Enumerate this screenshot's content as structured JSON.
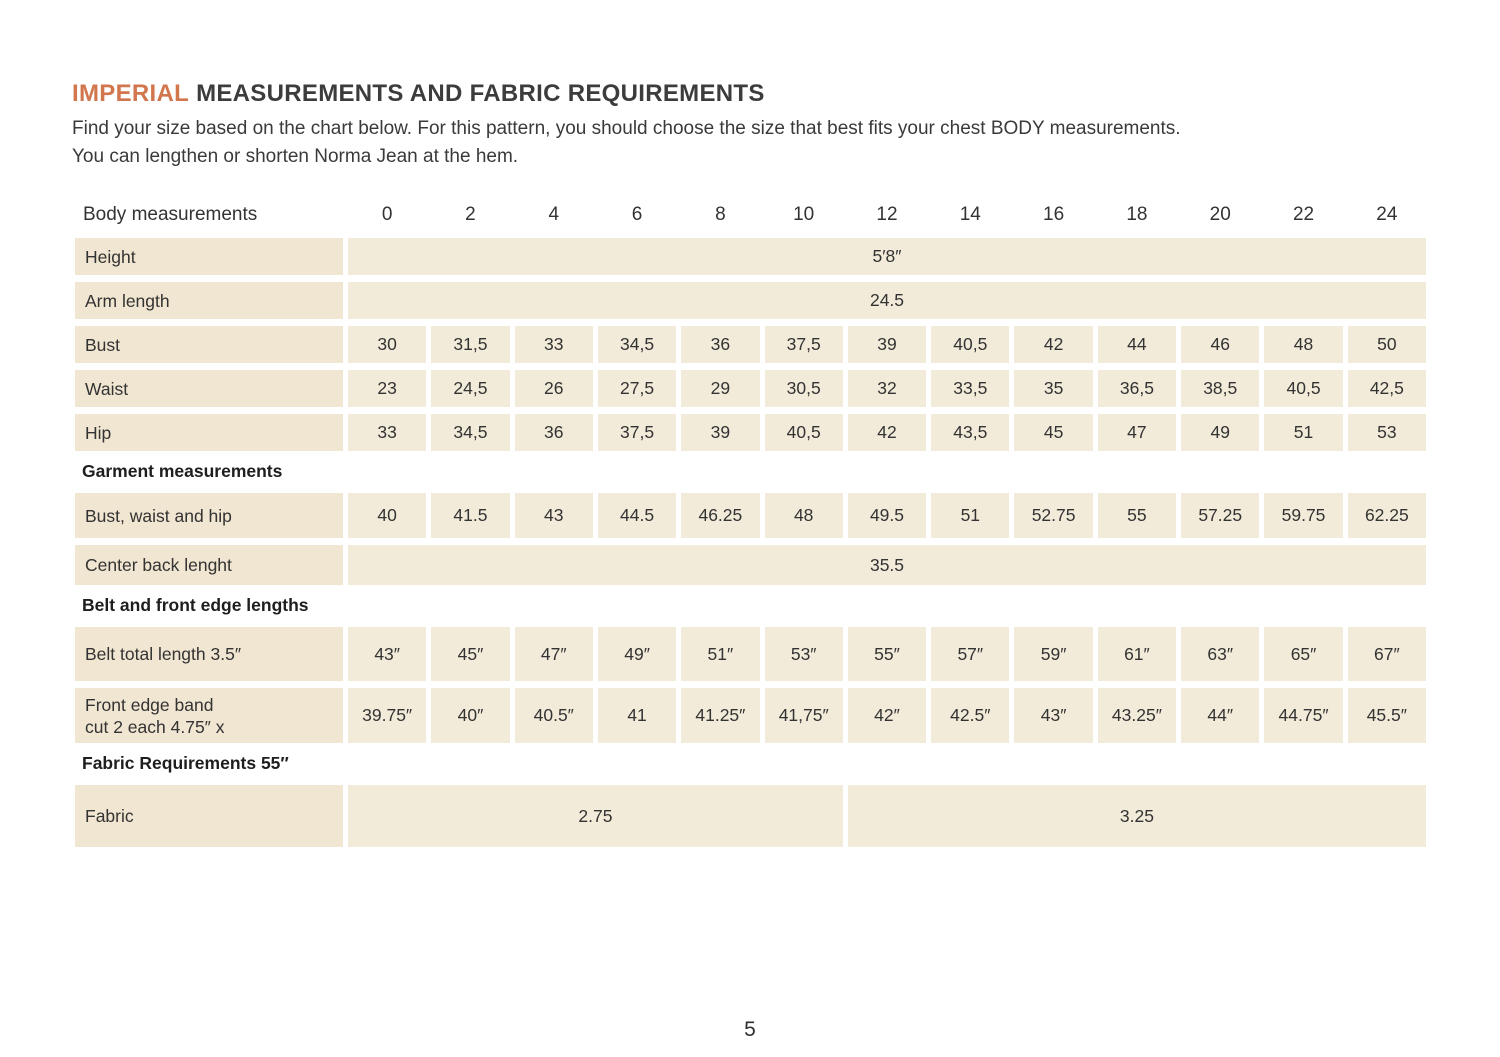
{
  "page": {
    "title": {
      "highlight": "IMPERIAL",
      "rest": "MEASUREMENTS AND FABRIC REQUIREMENTS"
    },
    "intro_lines": [
      "Find your size based on the chart below. For this pattern, you should choose the size that best fits your chest BODY measurements.",
      "You can lengthen or shorten Norma Jean at the hem."
    ],
    "page_number": "5",
    "accent_color": "#d2764e",
    "cell_color": "#f2ebd9",
    "label_cell_color": "#f1e6d1"
  },
  "table": {
    "header": {
      "label": "Body measurements",
      "sizes": [
        "0",
        "2",
        "4",
        "6",
        "8",
        "10",
        "12",
        "14",
        "16",
        "18",
        "20",
        "22",
        "24"
      ]
    },
    "rows": [
      {
        "id": "height",
        "kind": "data",
        "label_lines": [
          "Height"
        ],
        "cells": [
          {
            "text": "5′8″",
            "span": 13
          }
        ]
      },
      {
        "id": "arm-length",
        "kind": "data",
        "label_lines": [
          "Arm length"
        ],
        "cells": [
          {
            "text": "24.5",
            "span": 13
          }
        ]
      },
      {
        "id": "bust",
        "kind": "data",
        "label_lines": [
          "Bust"
        ],
        "cells": [
          "30",
          "31,5",
          "33",
          "34,5",
          "36",
          "37,5",
          "39",
          "40,5",
          "42",
          "44",
          "46",
          "48",
          "50"
        ]
      },
      {
        "id": "waist",
        "kind": "data",
        "label_lines": [
          "Waist"
        ],
        "cells": [
          "23",
          "24,5",
          "26",
          "27,5",
          "29",
          "30,5",
          "32",
          "33,5",
          "35",
          "36,5",
          "38,5",
          "40,5",
          "42,5"
        ]
      },
      {
        "id": "hip",
        "kind": "data",
        "label_lines": [
          "Hip"
        ],
        "cells": [
          "33",
          "34,5",
          "36",
          "37,5",
          "39",
          "40,5",
          "42",
          "43,5",
          "45",
          "47",
          "49",
          "51",
          "53"
        ]
      },
      {
        "id": "garment-measurements",
        "kind": "section",
        "label": "Garment measurements"
      },
      {
        "id": "bust-waist-hip",
        "kind": "data",
        "label_lines": [
          "Bust, waist and hip"
        ],
        "cells": [
          "40",
          "41.5",
          "43",
          "44.5",
          "46.25",
          "48",
          "49.5",
          "51",
          "52.75",
          "55",
          "57.25",
          "59.75",
          "62.25"
        ]
      },
      {
        "id": "center-back-length",
        "kind": "data",
        "label_lines": [
          "Center back lenght"
        ],
        "cells": [
          {
            "text": "35.5",
            "span": 13
          }
        ]
      },
      {
        "id": "belt-front-edge-lengths",
        "kind": "section",
        "label": "Belt and front edge lengths"
      },
      {
        "id": "belt-total-length",
        "kind": "data",
        "label_lines": [
          "Belt total length 3.5″"
        ],
        "cells": [
          "43″",
          "45″",
          "47″",
          "49″",
          "51″",
          "53″",
          "55″",
          "57″",
          "59″",
          "61″",
          "63″",
          "65″",
          "67″"
        ]
      },
      {
        "id": "front-edge-band",
        "kind": "data",
        "label_lines": [
          "Front edge band",
          "cut 2 each 4.75″ x"
        ],
        "cells": [
          "39.75″",
          "40″",
          "40.5″",
          "41",
          "41.25″",
          "41,75″",
          "42″",
          "42.5″",
          "43″",
          "43.25″",
          "44″",
          "44.75″",
          "45.5″"
        ]
      },
      {
        "id": "fabric-requirements",
        "kind": "section",
        "label": "Fabric Requirements 55″"
      },
      {
        "id": "fabric",
        "kind": "data",
        "label_lines": [
          "Fabric"
        ],
        "cells": [
          {
            "text": "2.75",
            "span": 6
          },
          {
            "text": "3.25",
            "span": 7
          }
        ]
      }
    ]
  }
}
